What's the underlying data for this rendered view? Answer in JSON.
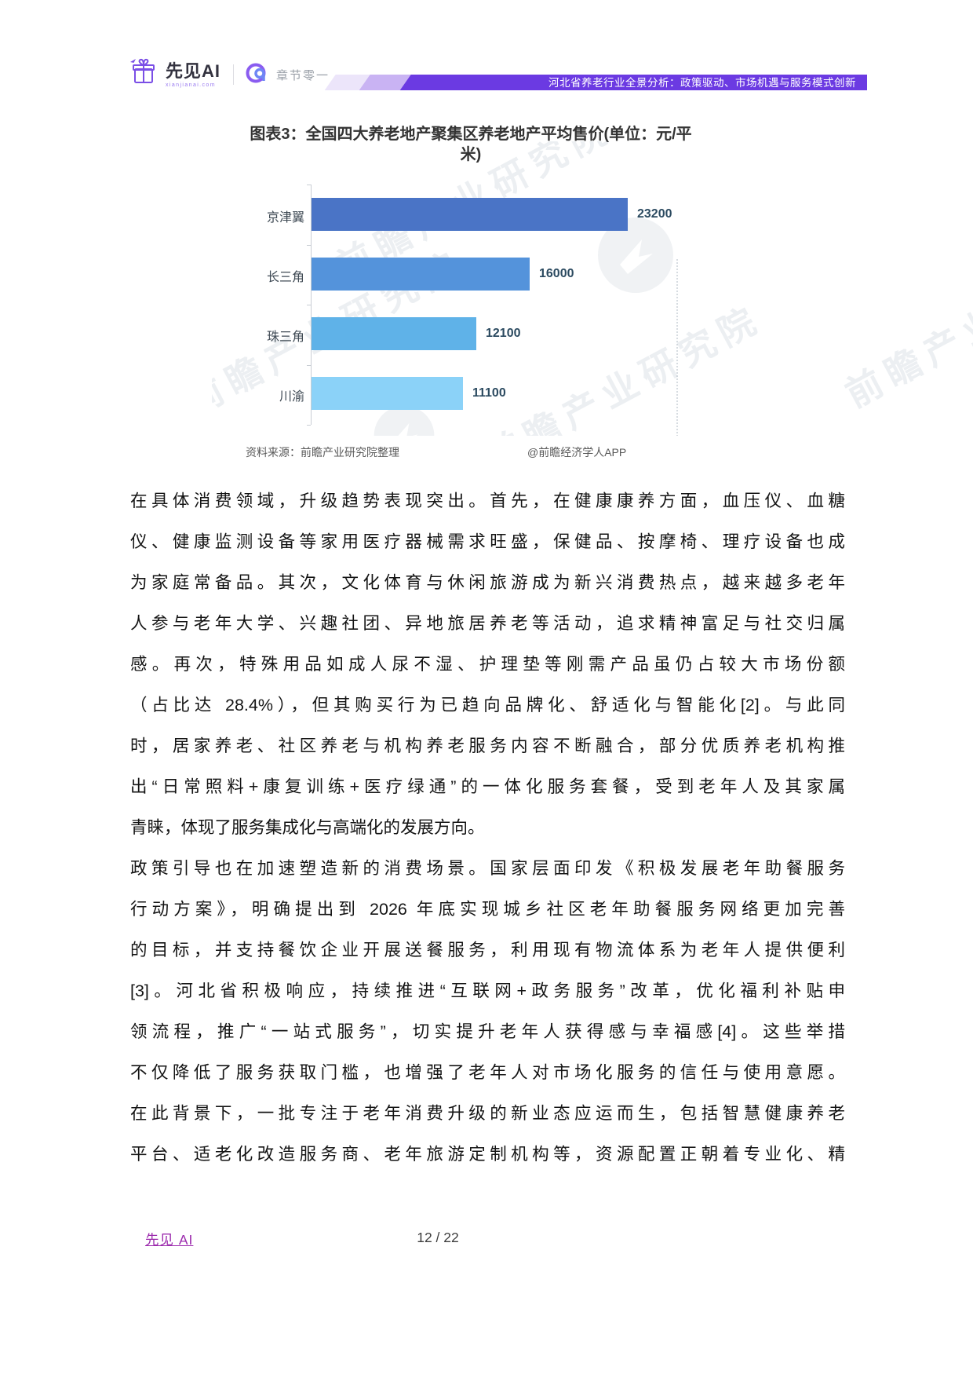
{
  "header": {
    "brand_name": "先见AI",
    "brand_sub": "xianjianai.com",
    "partner_name": "章节零一",
    "banner_text": "河北省养老行业全景分析：政策驱动、市场机遇与服务模式创新",
    "banner_color": "#6b3ae2"
  },
  "figure": {
    "title_line1": "图表3：全国四大养老地产聚集区养老地产平均售价(单位：元/平",
    "title_line2": "米)",
    "source_left": "资料来源：前瞻产业研究院整理",
    "source_right": "@前瞻经济学人APP",
    "watermark_text": "前瞻产业研究院"
  },
  "chart_data": {
    "type": "bar",
    "orientation": "horizontal",
    "title": "图表3：全国四大养老地产聚集区养老地产平均售价(单位：元/平米)",
    "unit": "元/平米",
    "categories": [
      "京津翼",
      "长三角",
      "珠三角",
      "川渝"
    ],
    "values": [
      23200,
      16000,
      12100,
      11100
    ],
    "bar_colors": [
      "#4a74c6",
      "#5493db",
      "#5fb2e8",
      "#8bd2f8"
    ],
    "value_label_color": "#2b4a60",
    "xlim": [
      0,
      24000
    ],
    "grid": false,
    "legend": false
  },
  "body": {
    "paragraphs": [
      {
        "last_line_flush": true,
        "lines": [
          "在具体消费领域，升级趋势表现突出。首先，在健康康养方面，血压仪、血糖",
          "仪、健康监测设备等家用医疗器械需求旺盛，保健品、按摩椅、理疗设备也成",
          "为家庭常备品。其次，文化体育与休闲旅游成为新兴消费热点，越来越多老年",
          "人参与老年大学、兴趣社团、异地旅居养老等活动，追求精神富足与社交归属",
          "感。再次，特殊用品如成人尿不湿、护理垫等刚需产品虽仍占较大市场份额",
          "（占比达 28.4%），但其购买行为已趋向品牌化、舒适化与智能化[2]。与此同",
          "时，居家养老、社区养老与机构养老服务内容不断融合，部分优质养老机构推",
          "出“日常照料+康复训练+医疗绿通”的一体化服务套餐，受到老年人及其家属",
          "青睐，体现了服务集成化与高端化的发展方向。"
        ]
      },
      {
        "last_line_flush": false,
        "lines": [
          "政策引导也在加速塑造新的消费场景。国家层面印发《积极发展老年助餐服务",
          "行动方案》，明确提出到 2026 年底实现城乡社区老年助餐服务网络更加完善",
          "的目标，并支持餐饮企业开展送餐服务，利用现有物流体系为老年人提供便利",
          "[3]。河北省积极响应，持续推进“互联网+政务服务”改革，优化福利补贴申",
          "领流程，推广“一站式服务”，切实提升老年人获得感与幸福感[4]。这些举措",
          "不仅降低了服务获取门槛，也增强了老年人对市场化服务的信任与使用意愿。",
          "在此背景下，一批专注于老年消费升级的新业态应运而生，包括智慧健康养老",
          "平台、适老化改造服务商、老年旅游定制机构等，资源配置正朝着专业化、精"
        ]
      }
    ]
  },
  "footer": {
    "brand_link": "先见 AI",
    "page_label": "12 / 22"
  }
}
